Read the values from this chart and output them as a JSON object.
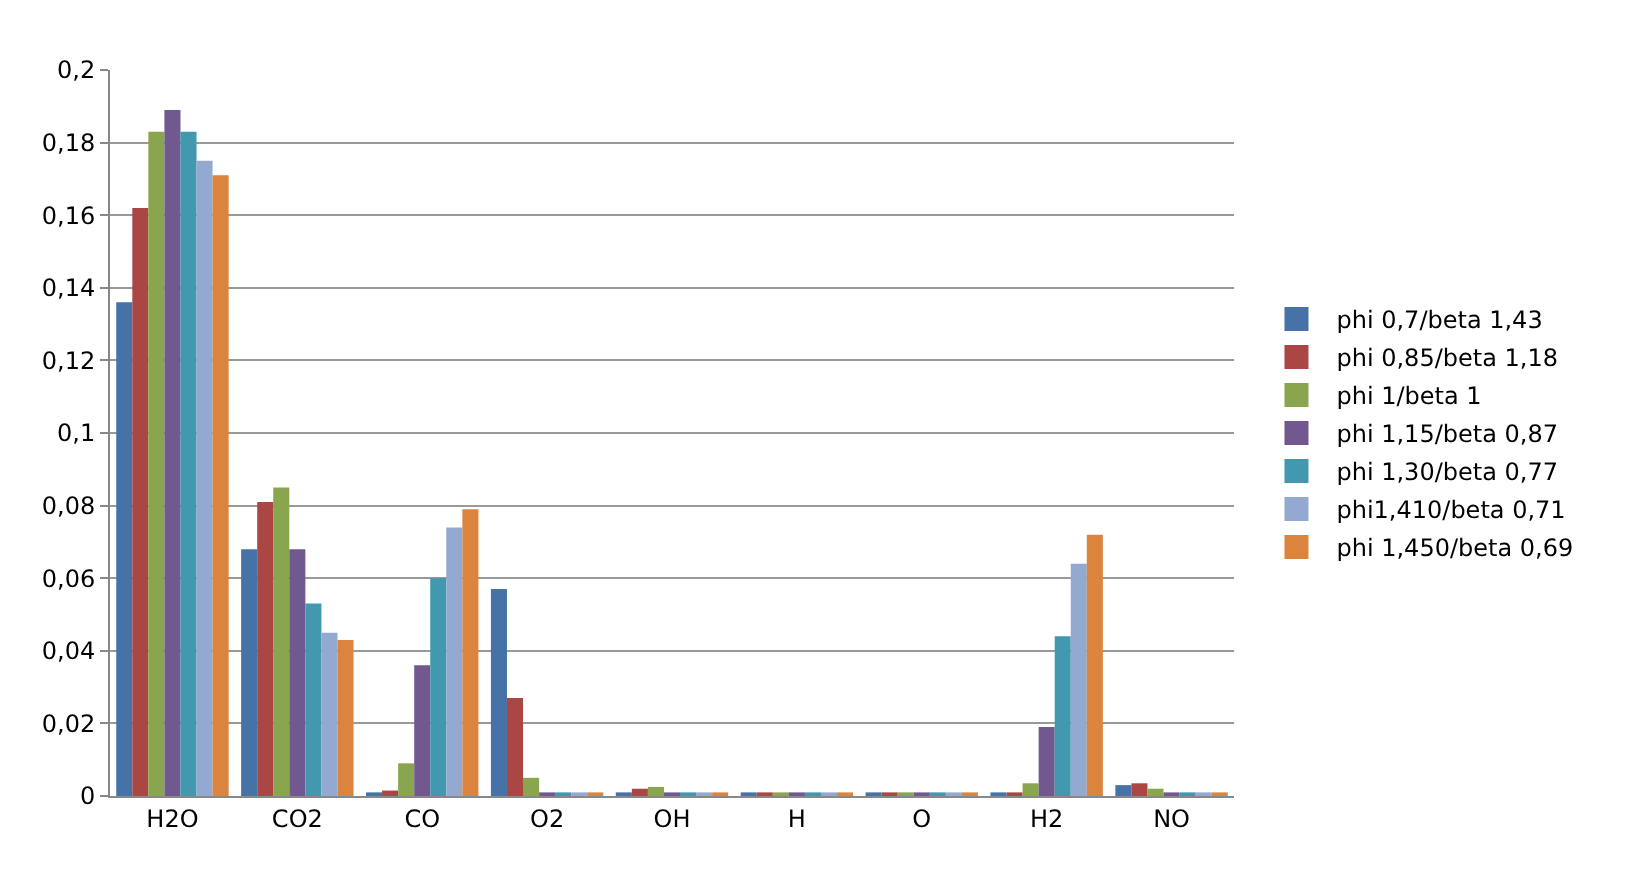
{
  "chart_data": {
    "type": "bar",
    "categories": [
      "H2O",
      "CO2",
      "CO",
      "O2",
      "OH",
      "H",
      "O",
      "H2",
      "NO"
    ],
    "series": [
      {
        "name": "phi 0,7/beta 1,43",
        "color": "#4572a7",
        "values": [
          0.136,
          0.068,
          0.001,
          0.057,
          0.001,
          0.001,
          0.001,
          0.001,
          0.003
        ]
      },
      {
        "name": "phi 0,85/beta 1,18",
        "color": "#aa4643",
        "values": [
          0.162,
          0.081,
          0.0015,
          0.027,
          0.002,
          0.001,
          0.001,
          0.001,
          0.0035
        ]
      },
      {
        "name": "phi 1/beta 1",
        "color": "#89a54e",
        "values": [
          0.183,
          0.085,
          0.009,
          0.005,
          0.0025,
          0.001,
          0.001,
          0.0035,
          0.002
        ]
      },
      {
        "name": "phi 1,15/beta 0,87",
        "color": "#71588f",
        "values": [
          0.189,
          0.068,
          0.036,
          0.001,
          0.001,
          0.001,
          0.001,
          0.019,
          0.001
        ]
      },
      {
        "name": "phi 1,30/beta 0,77",
        "color": "#4198af",
        "values": [
          0.183,
          0.053,
          0.06,
          0.001,
          0.001,
          0.001,
          0.001,
          0.044,
          0.001
        ]
      },
      {
        "name": "phi1,410/beta 0,71",
        "color": "#93a9cf",
        "values": [
          0.175,
          0.045,
          0.074,
          0.001,
          0.001,
          0.001,
          0.001,
          0.064,
          0.001
        ]
      },
      {
        "name": "phi 1,450/beta 0,69",
        "color": "#db843d",
        "values": [
          0.171,
          0.043,
          0.079,
          0.001,
          0.001,
          0.001,
          0.001,
          0.072,
          0.001
        ]
      }
    ],
    "ylim": [
      0,
      0.2
    ],
    "yticks": [
      {
        "value": 0,
        "label": "0"
      },
      {
        "value": 0.02,
        "label": "0,02"
      },
      {
        "value": 0.04,
        "label": "0,04"
      },
      {
        "value": 0.06,
        "label": "0,06"
      },
      {
        "value": 0.08,
        "label": "0,08"
      },
      {
        "value": 0.1,
        "label": "0,1"
      },
      {
        "value": 0.12,
        "label": "0,12"
      },
      {
        "value": 0.14,
        "label": "0,14"
      },
      {
        "value": 0.16,
        "label": "0,16"
      },
      {
        "value": 0.18,
        "label": "0,18"
      },
      {
        "value": 0.2,
        "label": "0,2"
      }
    ],
    "grid": "y",
    "legend": "right"
  }
}
